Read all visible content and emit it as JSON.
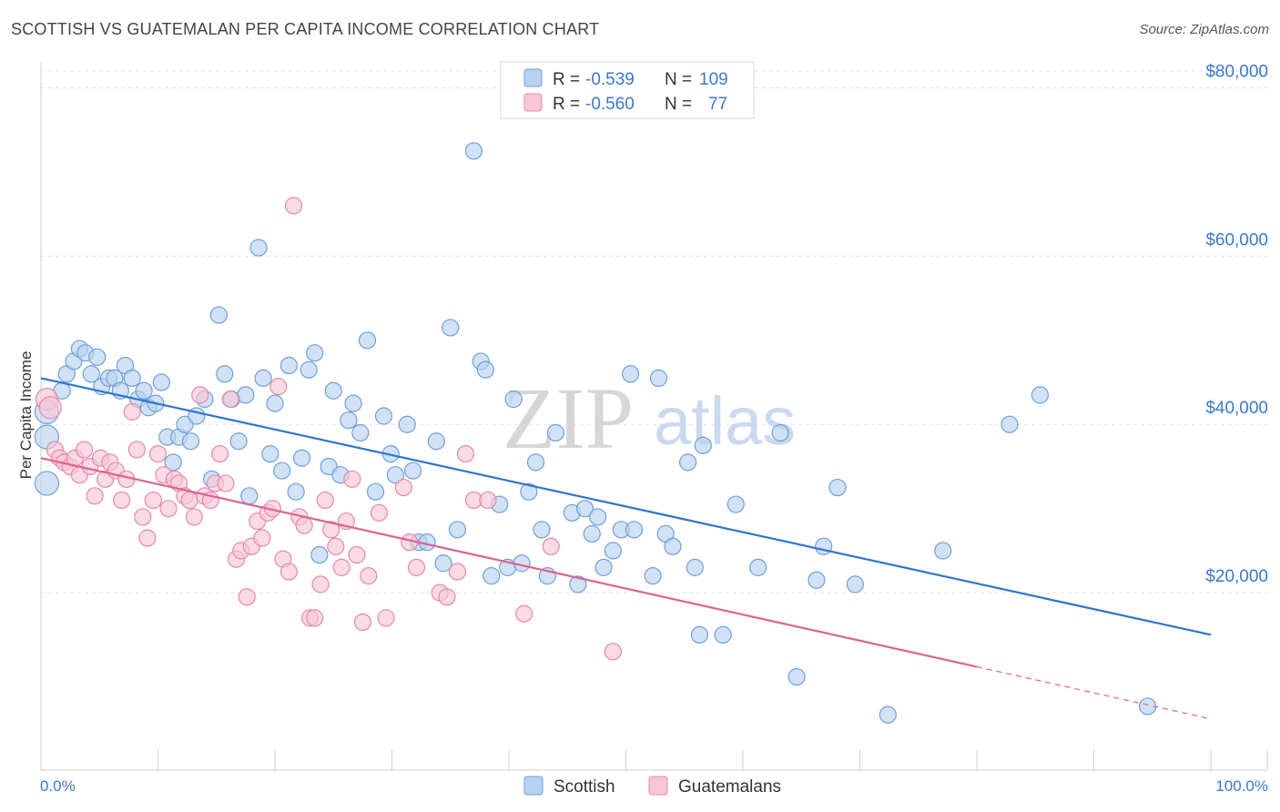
{
  "header": {
    "title": "SCOTTISH VS GUATEMALAN PER CAPITA INCOME CORRELATION CHART",
    "source": "Source: ZipAtlas.com"
  },
  "watermark": {
    "zip": "ZIP",
    "atlas": "atlas"
  },
  "colors": {
    "scottish_fill": "#b8d2f2",
    "scottish_stroke": "#6f9fd8",
    "scottish_line": "#2f75d0",
    "guatemalan_fill": "#f8c6d6",
    "guatemalan_stroke": "#e58aa8",
    "guatemalan_line": "#e0628c",
    "value_text": "#3b78d0"
  },
  "legend_top": {
    "rows": [
      {
        "r_label": "R =",
        "r_value": "-0.539",
        "n_label": "N =",
        "n_value": "109"
      },
      {
        "r_label": "R =",
        "r_value": "-0.560",
        "n_label": "N =",
        "n_value": "77"
      }
    ]
  },
  "chart_data": {
    "type": "scatter",
    "title": "SCOTTISH VS GUATEMALAN PER CAPITA INCOME CORRELATION CHART",
    "xlabel": "",
    "ylabel": "Per Capita Income",
    "xlim": [
      0,
      100
    ],
    "ylim": [
      0,
      82000
    ],
    "x_tick_labels": [
      "0.0%",
      "100.0%"
    ],
    "y_ticks": [
      20000,
      40000,
      60000,
      80000
    ],
    "y_tick_labels": [
      "$20,000",
      "$40,000",
      "$60,000",
      "$80,000"
    ],
    "grid": true,
    "legend_position": "bottom-center",
    "series": [
      {
        "name": "Scottish",
        "r": -0.539,
        "n": 109,
        "trend": {
          "x": [
            0,
            100
          ],
          "y": [
            45500,
            15000
          ],
          "dashed_from": null
        },
        "points": [
          [
            0.5,
            41500
          ],
          [
            0.5,
            38500
          ],
          [
            0.5,
            33000
          ],
          [
            1.8,
            44000
          ],
          [
            2.2,
            46000
          ],
          [
            2.8,
            47500
          ],
          [
            3.3,
            49000
          ],
          [
            3.8,
            48500
          ],
          [
            4.3,
            46000
          ],
          [
            4.8,
            48000
          ],
          [
            5.2,
            44500
          ],
          [
            5.8,
            45500
          ],
          [
            6.3,
            45500
          ],
          [
            6.8,
            44000
          ],
          [
            7.2,
            47000
          ],
          [
            7.8,
            45500
          ],
          [
            8.3,
            43000
          ],
          [
            8.8,
            44000
          ],
          [
            9.2,
            42000
          ],
          [
            9.8,
            42500
          ],
          [
            10.3,
            45000
          ],
          [
            10.8,
            38500
          ],
          [
            11.3,
            35500
          ],
          [
            11.8,
            38500
          ],
          [
            12.3,
            40000
          ],
          [
            12.8,
            38000
          ],
          [
            13.3,
            41000
          ],
          [
            14.0,
            43000
          ],
          [
            14.6,
            33500
          ],
          [
            15.2,
            53000
          ],
          [
            15.7,
            46000
          ],
          [
            16.3,
            43000
          ],
          [
            16.9,
            38000
          ],
          [
            17.5,
            43500
          ],
          [
            17.8,
            31500
          ],
          [
            18.6,
            61000
          ],
          [
            19.0,
            45500
          ],
          [
            19.6,
            36500
          ],
          [
            20.0,
            42500
          ],
          [
            20.6,
            34500
          ],
          [
            21.2,
            47000
          ],
          [
            21.8,
            32000
          ],
          [
            22.3,
            36000
          ],
          [
            22.9,
            46500
          ],
          [
            23.4,
            48500
          ],
          [
            23.8,
            24500
          ],
          [
            24.6,
            35000
          ],
          [
            25.0,
            44000
          ],
          [
            25.6,
            34000
          ],
          [
            26.3,
            40500
          ],
          [
            26.7,
            42500
          ],
          [
            27.3,
            39000
          ],
          [
            27.9,
            50000
          ],
          [
            28.6,
            32000
          ],
          [
            29.3,
            41000
          ],
          [
            29.9,
            36500
          ],
          [
            30.3,
            34000
          ],
          [
            31.3,
            40000
          ],
          [
            31.8,
            34500
          ],
          [
            32.3,
            26000
          ],
          [
            33.0,
            26000
          ],
          [
            33.8,
            38000
          ],
          [
            34.4,
            23500
          ],
          [
            35.0,
            51500
          ],
          [
            35.6,
            27500
          ],
          [
            37.0,
            72500
          ],
          [
            37.6,
            47500
          ],
          [
            38.0,
            46500
          ],
          [
            38.5,
            22000
          ],
          [
            39.2,
            30500
          ],
          [
            39.9,
            23000
          ],
          [
            40.4,
            43000
          ],
          [
            41.1,
            23500
          ],
          [
            41.7,
            32000
          ],
          [
            42.3,
            35500
          ],
          [
            42.8,
            27500
          ],
          [
            43.3,
            22000
          ],
          [
            44.0,
            39000
          ],
          [
            45.4,
            29500
          ],
          [
            45.9,
            21000
          ],
          [
            46.5,
            30000
          ],
          [
            47.1,
            27000
          ],
          [
            47.6,
            29000
          ],
          [
            48.1,
            23000
          ],
          [
            48.9,
            25000
          ],
          [
            49.6,
            27500
          ],
          [
            50.4,
            46000
          ],
          [
            50.7,
            27500
          ],
          [
            52.3,
            22000
          ],
          [
            52.8,
            45500
          ],
          [
            53.4,
            27000
          ],
          [
            54.0,
            25500
          ],
          [
            55.3,
            35500
          ],
          [
            55.9,
            23000
          ],
          [
            56.6,
            37500
          ],
          [
            56.3,
            15000
          ],
          [
            58.3,
            15000
          ],
          [
            59.4,
            30500
          ],
          [
            61.3,
            23000
          ],
          [
            63.2,
            39000
          ],
          [
            64.6,
            10000
          ],
          [
            66.3,
            21500
          ],
          [
            66.9,
            25500
          ],
          [
            68.1,
            32500
          ],
          [
            69.6,
            21000
          ],
          [
            72.4,
            5500
          ],
          [
            77.1,
            25000
          ],
          [
            82.8,
            40000
          ],
          [
            85.4,
            43500
          ],
          [
            94.6,
            6500
          ]
        ]
      },
      {
        "name": "Guatemalans",
        "r": -0.56,
        "n": 77,
        "trend": {
          "x": [
            0,
            100
          ],
          "y": [
            36000,
            5000
          ],
          "dashed_from": 80
        },
        "points": [
          [
            0.5,
            43000
          ],
          [
            0.8,
            42000
          ],
          [
            1.2,
            37000
          ],
          [
            1.6,
            36000
          ],
          [
            2.0,
            35500
          ],
          [
            2.5,
            35000
          ],
          [
            2.9,
            36000
          ],
          [
            3.3,
            34000
          ],
          [
            3.7,
            37000
          ],
          [
            4.2,
            35000
          ],
          [
            4.6,
            31500
          ],
          [
            5.1,
            36000
          ],
          [
            5.5,
            33500
          ],
          [
            5.9,
            35500
          ],
          [
            6.4,
            34500
          ],
          [
            6.9,
            31000
          ],
          [
            7.3,
            33500
          ],
          [
            7.8,
            41500
          ],
          [
            8.2,
            37000
          ],
          [
            8.7,
            29000
          ],
          [
            9.1,
            26500
          ],
          [
            9.6,
            31000
          ],
          [
            10.0,
            36500
          ],
          [
            10.5,
            34000
          ],
          [
            10.9,
            30000
          ],
          [
            11.4,
            33500
          ],
          [
            11.8,
            33000
          ],
          [
            12.3,
            31500
          ],
          [
            12.7,
            31000
          ],
          [
            13.1,
            29000
          ],
          [
            13.6,
            43500
          ],
          [
            14.0,
            31500
          ],
          [
            14.5,
            31000
          ],
          [
            14.9,
            33000
          ],
          [
            15.3,
            36500
          ],
          [
            15.8,
            33000
          ],
          [
            16.2,
            43000
          ],
          [
            16.7,
            24000
          ],
          [
            17.1,
            25000
          ],
          [
            17.6,
            19500
          ],
          [
            18.0,
            25500
          ],
          [
            18.5,
            28500
          ],
          [
            18.9,
            26500
          ],
          [
            19.4,
            29500
          ],
          [
            19.8,
            30000
          ],
          [
            20.3,
            44500
          ],
          [
            20.7,
            24000
          ],
          [
            21.2,
            22500
          ],
          [
            21.6,
            66000
          ],
          [
            22.1,
            29000
          ],
          [
            22.5,
            28000
          ],
          [
            23.0,
            17000
          ],
          [
            23.4,
            17000
          ],
          [
            23.9,
            21000
          ],
          [
            24.3,
            31000
          ],
          [
            24.8,
            27500
          ],
          [
            25.2,
            25500
          ],
          [
            25.7,
            23000
          ],
          [
            26.1,
            28500
          ],
          [
            26.6,
            33500
          ],
          [
            27.0,
            24500
          ],
          [
            27.5,
            16500
          ],
          [
            28.0,
            22000
          ],
          [
            28.9,
            29500
          ],
          [
            29.5,
            17000
          ],
          [
            31.0,
            32500
          ],
          [
            31.5,
            26000
          ],
          [
            32.1,
            23000
          ],
          [
            34.1,
            20000
          ],
          [
            34.7,
            19500
          ],
          [
            35.6,
            22500
          ],
          [
            36.3,
            36500
          ],
          [
            37.0,
            31000
          ],
          [
            38.2,
            31000
          ],
          [
            41.3,
            17500
          ],
          [
            43.6,
            25500
          ],
          [
            48.9,
            13000
          ]
        ]
      }
    ]
  },
  "legend_bottom": {
    "items": [
      "Scottish",
      "Guatemalans"
    ]
  }
}
